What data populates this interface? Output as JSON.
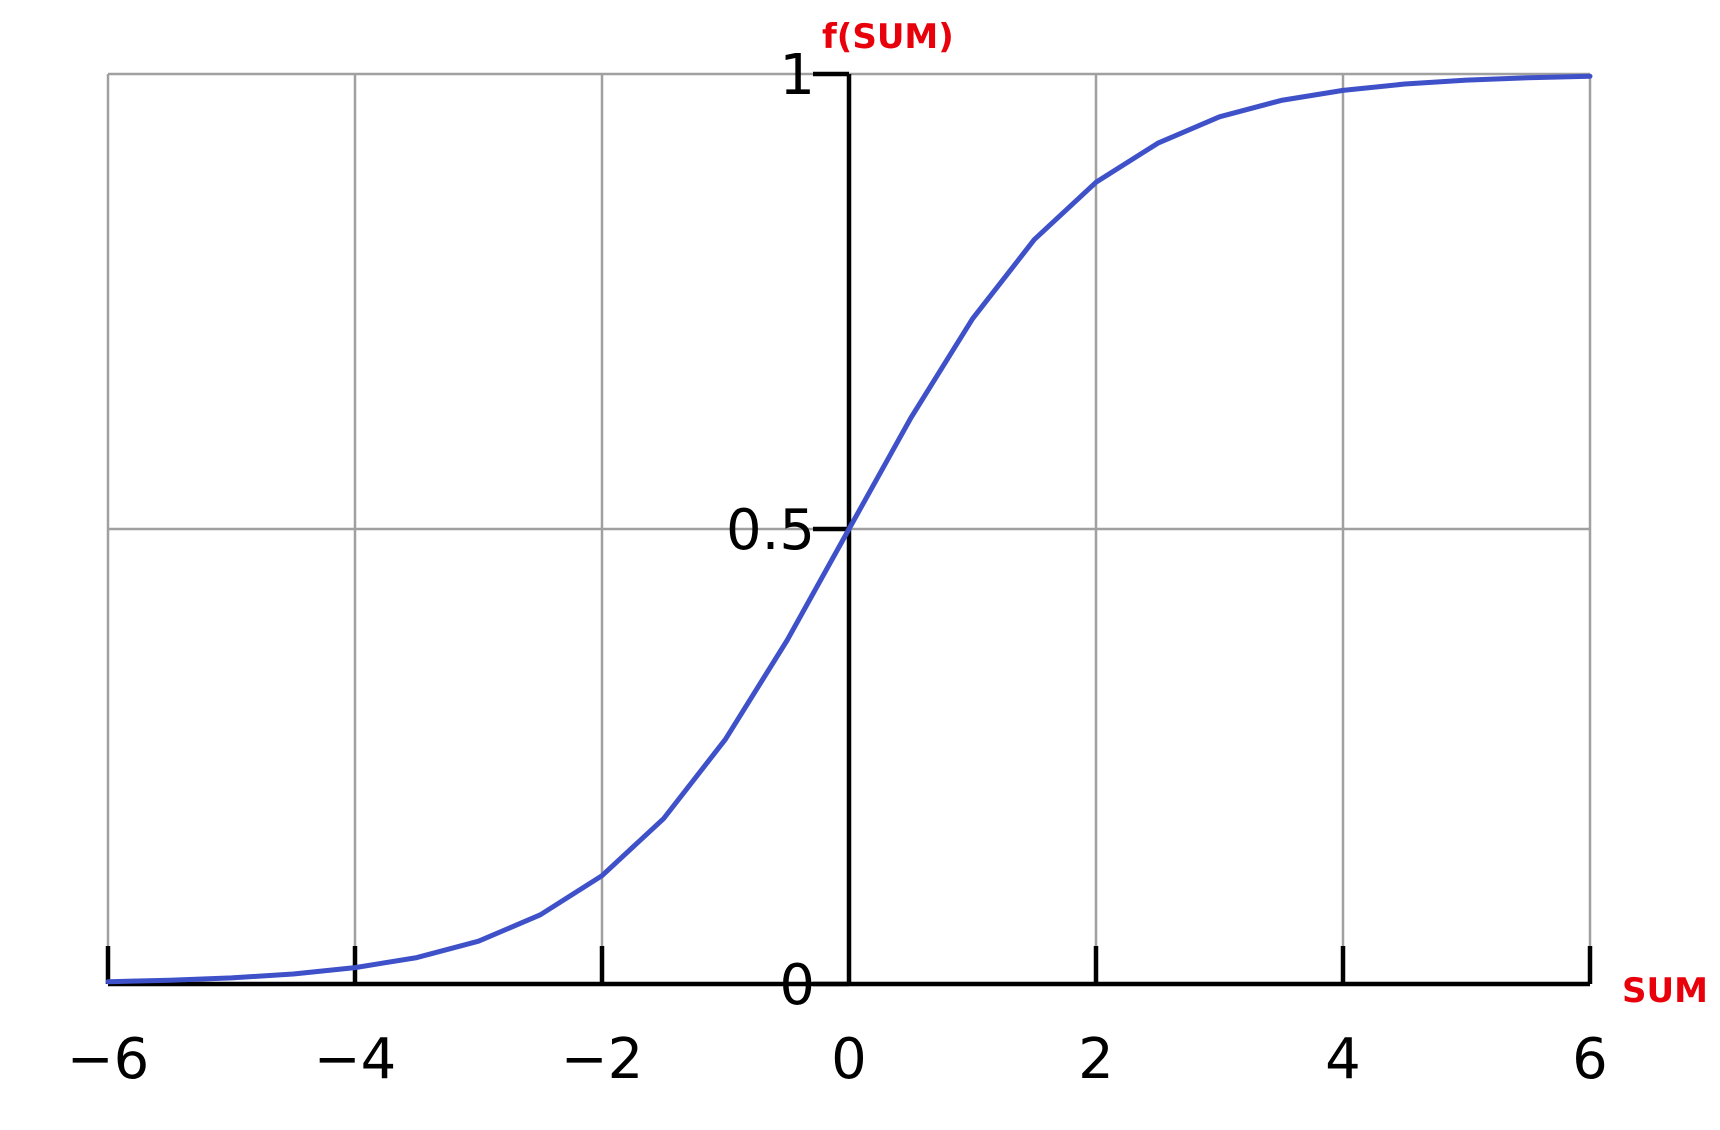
{
  "chart_data": {
    "type": "line",
    "xlabel": "SUM",
    "ylabel": "f(SUM)",
    "xlim": [
      -6,
      6
    ],
    "ylim": [
      0,
      1
    ],
    "grid": true,
    "x_ticks": [
      {
        "value": -6,
        "label": "−6"
      },
      {
        "value": -4,
        "label": "−4"
      },
      {
        "value": -2,
        "label": "−2"
      },
      {
        "value": 0,
        "label": "0"
      },
      {
        "value": 2,
        "label": "2"
      },
      {
        "value": 4,
        "label": "4"
      },
      {
        "value": 6,
        "label": "6"
      }
    ],
    "y_ticks": [
      {
        "value": 0,
        "label": "0"
      },
      {
        "value": 0.5,
        "label": "0.5"
      },
      {
        "value": 1,
        "label": "1"
      }
    ],
    "series": [
      {
        "x": [
          -6,
          -5.5,
          -5,
          -4.5,
          -4,
          -3.5,
          -3,
          -2.5,
          -2,
          -1.5,
          -1,
          -0.5,
          0,
          0.5,
          1,
          1.5,
          2,
          2.5,
          3,
          3.5,
          4,
          4.5,
          5,
          5.5,
          6
        ],
        "y": [
          0.0025,
          0.0041,
          0.0067,
          0.011,
          0.018,
          0.029,
          0.047,
          0.076,
          0.119,
          0.182,
          0.269,
          0.378,
          0.5,
          0.622,
          0.731,
          0.818,
          0.881,
          0.924,
          0.953,
          0.971,
          0.982,
          0.989,
          0.9933,
          0.9959,
          0.9975
        ]
      }
    ],
    "colors": {
      "curve": "#3f51c8",
      "grid": "#a0a0a0",
      "axis": "#000000",
      "axis_title": "#e8000b"
    }
  }
}
